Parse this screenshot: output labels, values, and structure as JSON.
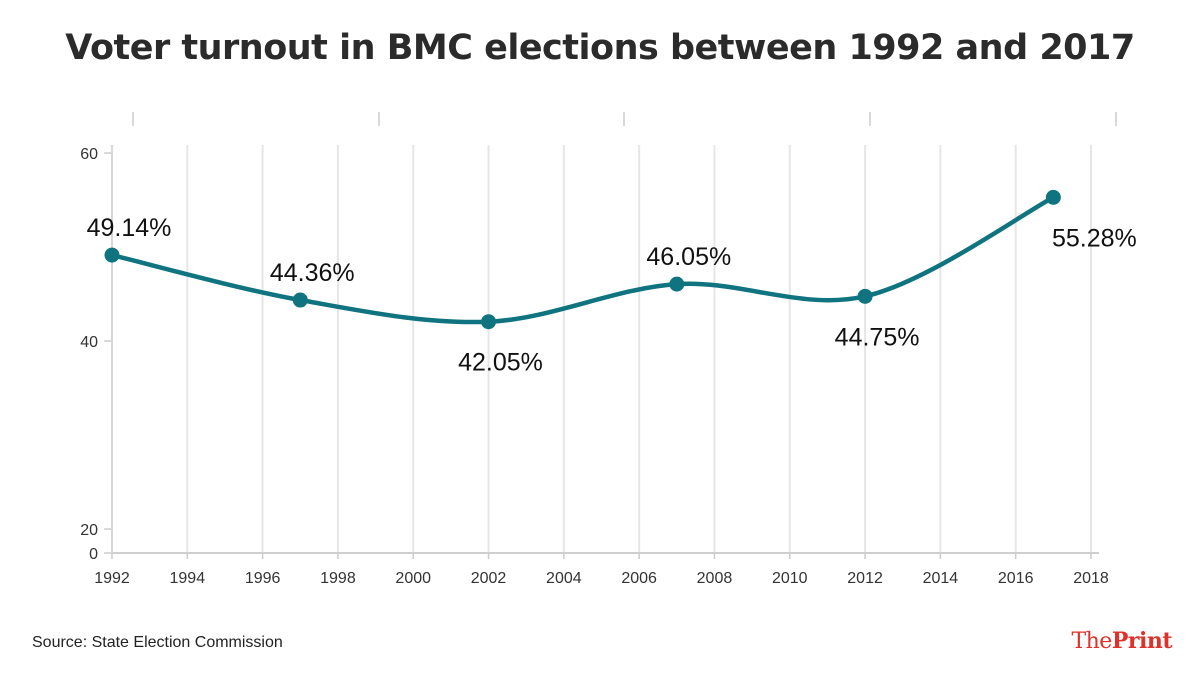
{
  "chart_data": {
    "type": "line",
    "title": "Voter turnout in BMC elections between 1992 and 2017",
    "xlabel": "",
    "ylabel": "",
    "x": [
      1992,
      1997,
      2002,
      2007,
      2012,
      2017
    ],
    "values": [
      49.14,
      44.36,
      42.05,
      46.05,
      44.75,
      55.28
    ],
    "data_labels": [
      "49.14%",
      "44.36%",
      "42.05%",
      "46.05%",
      "44.75%",
      "55.28%"
    ],
    "label_placement": [
      "above",
      "above",
      "below",
      "above",
      "below",
      "below"
    ],
    "x_ticks": [
      "1992",
      "1994",
      "1996",
      "1998",
      "2000",
      "2002",
      "2004",
      "2006",
      "2008",
      "2010",
      "2012",
      "2014",
      "2016",
      "2018"
    ],
    "y_ticks": [
      "60",
      "40",
      "20",
      "0"
    ],
    "y_tick_values": [
      60,
      40,
      20,
      0
    ],
    "xlim": [
      1992,
      2018
    ],
    "ylim": [
      0,
      60
    ],
    "grid": true,
    "line_color": "#0f7480"
  },
  "source": "Source: State Election Commission",
  "logo": {
    "the": "The",
    "print": "Print"
  }
}
